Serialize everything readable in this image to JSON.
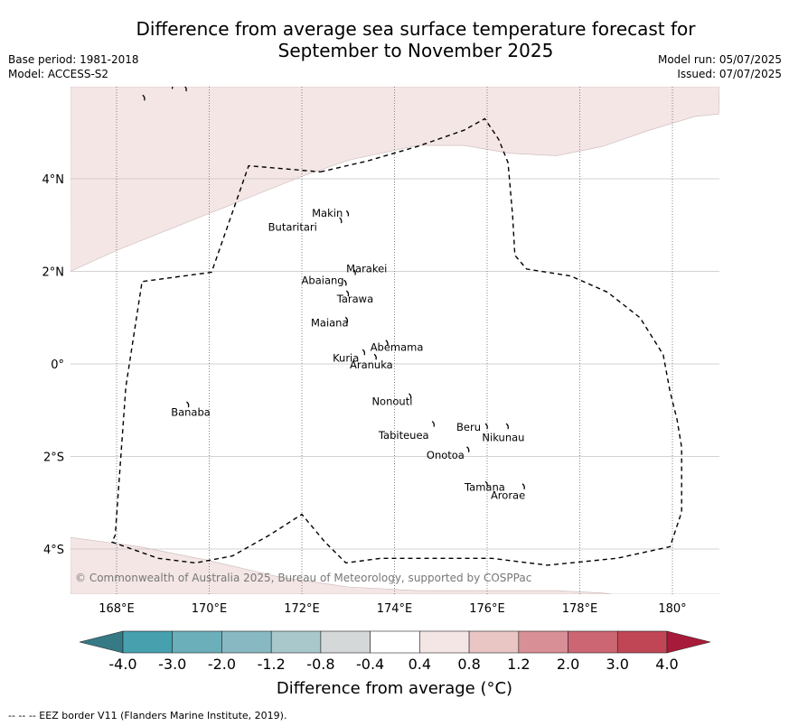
{
  "title": {
    "line1": "Difference from average sea surface temperature forecast for",
    "line2": "September to November 2025"
  },
  "meta_left": {
    "base_period": "Base period: 1981-2018",
    "model": "Model: ACCESS-S2"
  },
  "meta_right": {
    "model_run": "Model run: 05/07/2025",
    "issued": "Issued: 07/07/2025"
  },
  "map": {
    "lon_range": [
      167,
      181
    ],
    "lat_range": [
      -5,
      6
    ],
    "lon_ticks": [
      {
        "value": 168,
        "label": "168°E"
      },
      {
        "value": 170,
        "label": "170°E"
      },
      {
        "value": 172,
        "label": "172°E"
      },
      {
        "value": 174,
        "label": "174°E"
      },
      {
        "value": 176,
        "label": "176°E"
      },
      {
        "value": 178,
        "label": "178°E"
      },
      {
        "value": 180,
        "label": "180°"
      }
    ],
    "lat_ticks": [
      {
        "value": 4,
        "label": "4°N"
      },
      {
        "value": 2,
        "label": "2°N"
      },
      {
        "value": 0,
        "label": "0°"
      },
      {
        "value": -2,
        "label": "2°S"
      },
      {
        "value": -4,
        "label": "4°S"
      }
    ],
    "anomaly_fill": "#f4e6e5",
    "anomaly_category": "0.4 to 0.8",
    "places": [
      {
        "name": "Makin",
        "lon": 172.55,
        "lat": 3.25
      },
      {
        "name": "Butaritari",
        "lon": 171.8,
        "lat": 2.95
      },
      {
        "name": "Marakei",
        "lon": 173.4,
        "lat": 2.05
      },
      {
        "name": "Abaiang",
        "lon": 172.45,
        "lat": 1.8
      },
      {
        "name": "Tarawa",
        "lon": 173.15,
        "lat": 1.4
      },
      {
        "name": "Maiana",
        "lon": 172.6,
        "lat": 0.88
      },
      {
        "name": "Abemama",
        "lon": 174.05,
        "lat": 0.35
      },
      {
        "name": "Kuria",
        "lon": 172.95,
        "lat": 0.12
      },
      {
        "name": "Aranuka",
        "lon": 173.5,
        "lat": -0.03
      },
      {
        "name": "Banaba",
        "lon": 169.6,
        "lat": -1.05
      },
      {
        "name": "Nonouti",
        "lon": 173.95,
        "lat": -0.82
      },
      {
        "name": "Beru",
        "lon": 175.6,
        "lat": -1.38
      },
      {
        "name": "Nikunau",
        "lon": 176.35,
        "lat": -1.6
      },
      {
        "name": "Tabiteuea",
        "lon": 174.2,
        "lat": -1.55
      },
      {
        "name": "Onotoa",
        "lon": 175.1,
        "lat": -1.98
      },
      {
        "name": "Tamana",
        "lon": 175.95,
        "lat": -2.67
      },
      {
        "name": "Arorae",
        "lon": 176.45,
        "lat": -2.85
      }
    ],
    "islands": [
      {
        "lon": 173.0,
        "lat": 3.25
      },
      {
        "lon": 172.85,
        "lat": 3.1
      },
      {
        "lon": 173.15,
        "lat": 1.98
      },
      {
        "lon": 172.95,
        "lat": 1.75
      },
      {
        "lon": 173.0,
        "lat": 1.52
      },
      {
        "lon": 172.98,
        "lat": 0.95
      },
      {
        "lon": 173.85,
        "lat": 0.45
      },
      {
        "lon": 173.35,
        "lat": 0.25
      },
      {
        "lon": 173.6,
        "lat": 0.15
      },
      {
        "lon": 169.55,
        "lat": -0.88
      },
      {
        "lon": 174.35,
        "lat": -0.7
      },
      {
        "lon": 174.85,
        "lat": -1.3
      },
      {
        "lon": 176.0,
        "lat": -1.35
      },
      {
        "lon": 176.45,
        "lat": -1.35
      },
      {
        "lon": 175.6,
        "lat": -1.85
      },
      {
        "lon": 176.0,
        "lat": -2.6
      },
      {
        "lon": 176.8,
        "lat": -2.65
      },
      {
        "lon": 168.6,
        "lat": 5.75
      },
      {
        "lon": 169.5,
        "lat": 5.95
      },
      {
        "lon": 169.2,
        "lat": 6.0
      }
    ],
    "eez_border": [
      [
        172.4,
        4.15
      ],
      [
        173.4,
        4.38
      ],
      [
        174.5,
        4.7
      ],
      [
        175.5,
        5.05
      ],
      [
        175.95,
        5.3
      ],
      [
        176.25,
        4.85
      ],
      [
        176.45,
        4.35
      ],
      [
        176.55,
        3.2
      ],
      [
        176.6,
        2.35
      ],
      [
        176.85,
        2.05
      ],
      [
        177.8,
        1.9
      ],
      [
        178.6,
        1.55
      ],
      [
        179.3,
        1.0
      ],
      [
        179.8,
        0.2
      ],
      [
        179.95,
        -0.6
      ],
      [
        180.1,
        -1.2
      ],
      [
        180.2,
        -1.8
      ],
      [
        180.2,
        -3.2
      ],
      [
        179.95,
        -3.95
      ],
      [
        178.8,
        -4.2
      ],
      [
        177.3,
        -4.35
      ],
      [
        176.1,
        -4.2
      ],
      [
        174.5,
        -4.2
      ],
      [
        173.7,
        -4.2
      ],
      [
        172.95,
        -4.3
      ],
      [
        172.5,
        -3.85
      ],
      [
        172.0,
        -3.25
      ],
      [
        171.3,
        -3.7
      ],
      [
        170.5,
        -4.15
      ],
      [
        169.7,
        -4.3
      ],
      [
        168.9,
        -4.2
      ],
      [
        167.9,
        -3.85
      ],
      [
        167.97,
        -3.7
      ],
      [
        168.2,
        -0.5
      ],
      [
        168.55,
        1.78
      ],
      [
        170.05,
        1.98
      ],
      [
        170.85,
        4.28
      ],
      [
        172.4,
        4.15
      ]
    ],
    "northern_anomaly_boundary": [
      [
        167,
        2.0
      ],
      [
        168.0,
        2.45
      ],
      [
        169.0,
        2.85
      ],
      [
        170.0,
        3.25
      ],
      [
        171.0,
        3.65
      ],
      [
        172.0,
        4.05
      ],
      [
        173.0,
        4.4
      ],
      [
        174.5,
        4.72
      ],
      [
        175.5,
        4.72
      ],
      [
        176.5,
        4.55
      ],
      [
        177.5,
        4.5
      ],
      [
        178.5,
        4.7
      ],
      [
        179.5,
        5.05
      ],
      [
        180.5,
        5.35
      ],
      [
        181,
        5.4
      ]
    ],
    "southern_anomaly_boundary": [
      [
        167,
        -3.75
      ],
      [
        168.5,
        -3.95
      ],
      [
        170.0,
        -4.25
      ],
      [
        171.5,
        -4.6
      ],
      [
        173.0,
        -4.82
      ],
      [
        174.5,
        -4.9
      ],
      [
        176.0,
        -4.9
      ],
      [
        177.5,
        -4.9
      ],
      [
        178.5,
        -4.95
      ],
      [
        179.5,
        -5.08
      ],
      [
        181,
        -5.15
      ]
    ]
  },
  "copyright": "© Commonwealth of Australia 2025, Bureau of Meteorology, supported by COSPPac",
  "colorbar": {
    "title": "Difference from average (°C)",
    "low_arrow_color": "#357a85",
    "high_arrow_color": "#a81a3a",
    "segments": [
      {
        "color": "#46a0ae"
      },
      {
        "color": "#6aafba"
      },
      {
        "color": "#88b9c3"
      },
      {
        "color": "#a9c8cc"
      },
      {
        "color": "#d4d8d8"
      },
      {
        "color": "#ffffff"
      },
      {
        "color": "#f4e6e5"
      },
      {
        "color": "#e9c6c4"
      },
      {
        "color": "#d88f96"
      },
      {
        "color": "#cb6672"
      },
      {
        "color": "#c04555"
      }
    ],
    "labels": [
      "-4.0",
      "-3.0",
      "-2.0",
      "-1.2",
      "-0.8",
      "-0.4",
      "0.4",
      "0.8",
      "1.2",
      "2.0",
      "3.0",
      "4.0"
    ]
  },
  "footnote": "--  --  -- EEZ border V11 (Flanders Marine Institute, 2019)."
}
